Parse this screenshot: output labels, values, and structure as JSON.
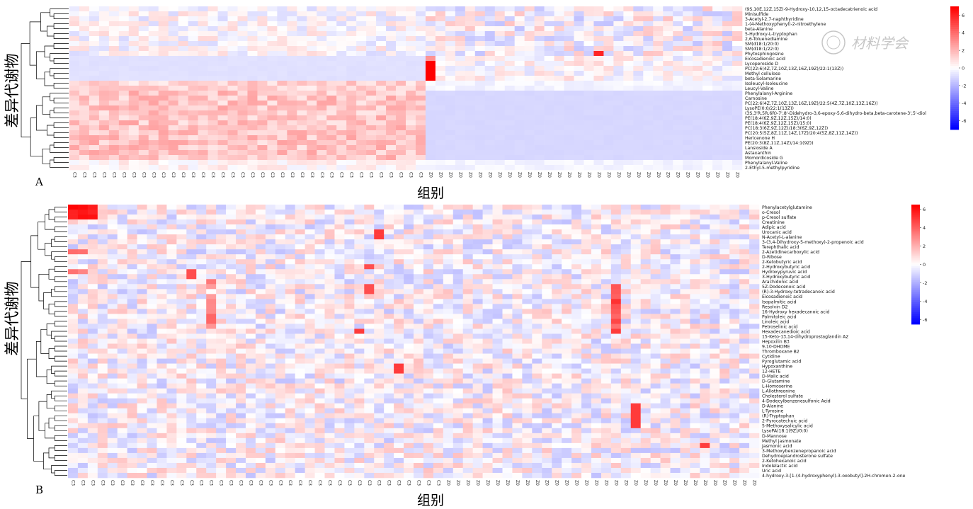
{
  "watermark": "材料学会",
  "panels": [
    {
      "panel_label": "A",
      "y_axis_title": "差异代谢物",
      "x_axis_title": "组别",
      "metabolites": [
        "(9S,10E,12Z,15Z)-9-Hydroxy-10,12,15-octadecatrienoic acid",
        "Minisulfide",
        "3-Acetyl-2,7-naphthyridine",
        "1-(4-Methoxyphenyl)-2-nitroethylene",
        "beta-Alanine",
        "5-Hydroxy-L-tryptophan",
        "2,6-Toluenediamine",
        "SM(d18:1/20:0)",
        "SM(d18:1/22:0)",
        "Phytosphingosine",
        "Eicosadienoic acid",
        "Lycoperoside D",
        "PC(22:6(4Z,7Z,10Z,13Z,16Z,19Z)/22:1(13Z))",
        "Methyl cellulose",
        "beta-Solamarine",
        "Isoleucyl-Isoleucine",
        "Leucyl-Valine",
        "Phenylalanyl-Arginine",
        "Carnosine",
        "PC(22:6(4Z,7Z,10Z,13Z,16Z,19Z)/22:5(4Z,7Z,10Z,13Z,16Z))",
        "LysoPE(0:0/22:1(13Z))",
        "(3S,3'R,5R,6R)-7',8'-Didehydro-3,6-epoxy-5,6-dihydro-beta,beta-carotene-3',5'-diol",
        "PE(18:4(6Z,9Z,12Z,15Z)/14:0)",
        "PE(18:4(6Z,9Z,12Z,15Z)/15:0)",
        "PC(18:3(6Z,9Z,12Z)/18:3(6Z,9Z,12Z))",
        "PC(20:5(5Z,8Z,11Z,14Z,17Z)/20:4(5Z,8Z,11Z,14Z))",
        "Hericenone H",
        "PE(20:3(8Z,11Z,14Z)/14:1(9Z))",
        "Lansioside A",
        "Astaxanthin",
        "Momordicoside G",
        "Phenylalanyl-Valine",
        "2-Ethyl-5-methylpyridine"
      ],
      "group_labels": [
        "C3",
        "Z0"
      ],
      "group_sizes": [
        36,
        32
      ],
      "colorbar_ticks": [
        "6",
        "4",
        "2",
        "0",
        "-2",
        "-4",
        "-6"
      ]
    },
    {
      "panel_label": "B",
      "y_axis_title": "差异代谢物",
      "x_axis_title": "组别",
      "metabolites": [
        "Phenylacetylglutamine",
        "o-Cresol",
        "p-Cresol sulfate",
        "Creatinine",
        "Adipic acid",
        "Urocanic acid",
        "N-Acetyl-L-alanine",
        "3-(3,4-Dihydroxy-5-methoxy)-2-propenoic acid",
        "Terephthalic acid",
        "2-Azetidinecarboxylic acid",
        "D-Ribose",
        "2-Ketobutyric acid",
        "2-Hydroxybutyric acid",
        "Hydroxypyruvic acid",
        "3-Hydroxybutyric acid",
        "Arachidonic acid",
        "5Z-Dodecenoic acid",
        "(R)-3-Hydroxy-tetradecanoic acid",
        "Eicosadienoic acid",
        "Isopalmitic acid",
        "Resolvin D2",
        "16-Hydroxy hexadecanoic acid",
        "Palmitoleic acid",
        "Linoleic acid",
        "Petroselinic acid",
        "Hexadecanedioic acid",
        "15-Keto-13,14-dihydroprostaglandin A2",
        "Hepoxilin B3",
        "9,10-DHOME",
        "Thromboxane B2",
        "Cytidine",
        "Pyroglutamic acid",
        "Hypoxanthine",
        "12-HETE",
        "D-Malic acid",
        "D-Glutamine",
        "L-Homoserine",
        "L-Allothreonine",
        "Cholesterol sulfate",
        "4-Dodecylbenzenesulfonic Acid",
        "D-Alanine",
        "L-Tyrosine",
        "(R)-Tryptophan",
        "2-Pyrocatechuic acid",
        "5-Methoxysalicylic acid",
        "LysoPA(18:1(9Z)/0:0)",
        "D-Mannose",
        "Methyl jasmonate",
        "Jasmonic acid",
        "3-Methoxybenzenepropanoic acid",
        "Dehydroepiandrosterone sulfate",
        "2-Ketohexanoic acid",
        "Indolelactic acid",
        "Uric acid",
        "4-hydroxy-3-[1-(4-hydroxyphenyl)-3-oxobutyl]-2H-chromen-2-one"
      ],
      "group_labels": [
        "C3",
        "Z0"
      ],
      "group_sizes": [
        38,
        32
      ],
      "colorbar_ticks": [
        "6",
        "4",
        "2",
        "0",
        "-2",
        "-4",
        "-6"
      ]
    }
  ],
  "chart_data": [
    {
      "type": "heatmap",
      "panel": "A",
      "x": "sample groups",
      "columns": {
        "C3": 36,
        "Z0": 32
      },
      "clim": [
        -7,
        7
      ],
      "colormap": [
        "#0000ff",
        "#ffffff",
        "#ff0000"
      ],
      "row_clusters": [
        {
          "rows": "Eicosadienoic acid … beta-Solamarine",
          "C3": -0.8,
          "Z0": 0.3,
          "notes": "near-uniform pale blue in C3; single strong red column at start of Z0"
        },
        {
          "rows": "Isoleucyl-Isoleucine … Leucyl-Valine",
          "C3": 0.8,
          "Z0": -0.2
        },
        {
          "rows": "Carnosine … Momordicoside G",
          "C3": 1.5,
          "Z0": -1.2,
          "notes": "pink in C3, uniform lavender in Z0"
        },
        {
          "rows": "Phenylalanyl-Valine, 2-Ethyl-5-methylpyridine",
          "C3": 0.3,
          "Z0": -0.3
        }
      ],
      "highlights": [
        {
          "row": "Phytosphingosine",
          "group": "Z0",
          "value": 6
        },
        {
          "row": "Lycoperoside D",
          "group": "Z0",
          "value": 7
        },
        {
          "row": "PC(22:6(4Z,7Z,10Z,13Z,16Z,19Z)/22:1(13Z))",
          "group": "Z0",
          "value": 7
        }
      ]
    },
    {
      "type": "heatmap",
      "panel": "B",
      "x": "sample groups",
      "columns": {
        "C3": 38,
        "Z0": 32
      },
      "clim": [
        -6.5,
        6.5
      ],
      "colormap": [
        "#0000ff",
        "#ffffff",
        "#ff0000"
      ],
      "notes": "mostly mixed low-magnitude values (-2..2); strong red in first C3 columns for Phenylacetylglutamine, o-Cresol, p-Cresol sulfate; red streaks for fatty acids around Z0 column 14",
      "highlights": [
        {
          "row": "Phenylacetylglutamine",
          "group": "C3",
          "value": 6
        },
        {
          "row": "o-Cresol",
          "group": "C3",
          "value": 6
        },
        {
          "row": "Urocanic acid",
          "group": "C3",
          "value": 5
        },
        {
          "row": "Hexadecanedioic acid",
          "group": "C3",
          "value": 5
        },
        {
          "row": "Linoleic acid",
          "group": "Z0",
          "value": 5
        },
        {
          "row": "L-Tyrosine",
          "group": "Z0",
          "value": 5
        },
        {
          "row": "Jasmonic acid",
          "group": "Z0",
          "value": 5
        }
      ]
    }
  ]
}
